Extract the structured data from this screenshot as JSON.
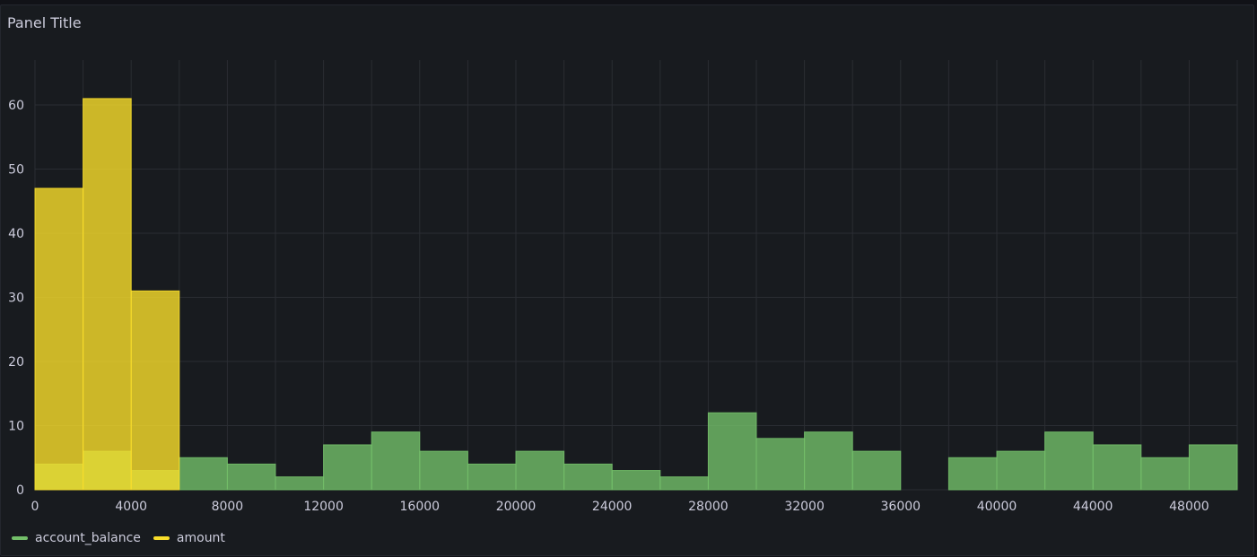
{
  "panel": {
    "title": "Panel Title"
  },
  "colors": {
    "background": "#181b1f",
    "grid": "#2a2d33",
    "account_balance": "#73bf69",
    "amount": "#fade2a"
  },
  "legend": [
    {
      "name": "account_balance",
      "color": "#73bf69"
    },
    {
      "name": "amount",
      "color": "#fade2a"
    }
  ],
  "chart_data": {
    "type": "bar",
    "title": "",
    "xlabel": "",
    "ylabel": "",
    "bucket_size": 2000,
    "xlim": [
      0,
      50000
    ],
    "ylim": [
      0,
      67
    ],
    "x_ticks": [
      0,
      4000,
      8000,
      12000,
      16000,
      20000,
      24000,
      28000,
      32000,
      36000,
      40000,
      44000,
      48000
    ],
    "y_ticks": [
      0,
      10,
      20,
      30,
      40,
      50,
      60
    ],
    "grid": true,
    "legend_position": "bottom-left",
    "series": [
      {
        "name": "account_balance",
        "buckets": [
          {
            "start": 0,
            "value": 4
          },
          {
            "start": 2000,
            "value": 6
          },
          {
            "start": 4000,
            "value": 3
          },
          {
            "start": 6000,
            "value": 5
          },
          {
            "start": 8000,
            "value": 4
          },
          {
            "start": 10000,
            "value": 2
          },
          {
            "start": 12000,
            "value": 7
          },
          {
            "start": 14000,
            "value": 9
          },
          {
            "start": 16000,
            "value": 6
          },
          {
            "start": 18000,
            "value": 4
          },
          {
            "start": 20000,
            "value": 6
          },
          {
            "start": 22000,
            "value": 4
          },
          {
            "start": 24000,
            "value": 3
          },
          {
            "start": 26000,
            "value": 2
          },
          {
            "start": 28000,
            "value": 12
          },
          {
            "start": 30000,
            "value": 8
          },
          {
            "start": 32000,
            "value": 9
          },
          {
            "start": 34000,
            "value": 6
          },
          {
            "start": 38000,
            "value": 5
          },
          {
            "start": 40000,
            "value": 6
          },
          {
            "start": 42000,
            "value": 9
          },
          {
            "start": 44000,
            "value": 7
          },
          {
            "start": 46000,
            "value": 5
          },
          {
            "start": 48000,
            "value": 7
          }
        ]
      },
      {
        "name": "amount",
        "buckets": [
          {
            "start": 0,
            "value": 47
          },
          {
            "start": 2000,
            "value": 61
          },
          {
            "start": 4000,
            "value": 31
          }
        ]
      }
    ]
  }
}
